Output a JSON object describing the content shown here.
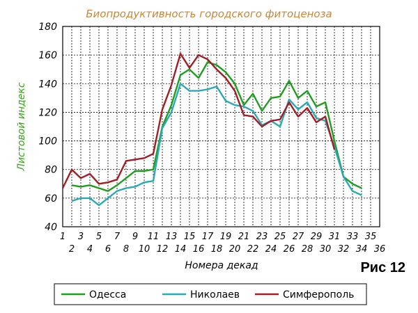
{
  "caption": "Рис 12",
  "chart_data": {
    "type": "line",
    "title": "Биопродуктивность городского фитоценоза",
    "xlabel": "Номера декад",
    "ylabel": "Листовой индекс",
    "x_ticks_top": [
      "1",
      "3",
      "5",
      "7",
      "9",
      "11",
      "13",
      "15",
      "17",
      "19",
      "21",
      "23",
      "25",
      "27",
      "29",
      "31",
      "33",
      "35"
    ],
    "x_ticks_bottom": [
      "2",
      "4",
      "6",
      "8",
      "10",
      "12",
      "14",
      "16",
      "18",
      "20",
      "22",
      "24",
      "26",
      "28",
      "30",
      "32",
      "34",
      "36"
    ],
    "xlim": [
      1,
      36
    ],
    "ylim": [
      40,
      180
    ],
    "y_ticks": [
      "40",
      "60",
      "80",
      "100",
      "120",
      "140",
      "160",
      "180"
    ],
    "grid": true,
    "legend_position": "bottom",
    "colors": {
      "title": "#c8863a",
      "axis_label": "#3aa51d",
      "grid": "#000000",
      "frame": "#000000"
    },
    "series": [
      {
        "name": "Одесса",
        "color": "#1e9e1e",
        "x": [
          2,
          3,
          4,
          5,
          6,
          7,
          8,
          9,
          10,
          11,
          12,
          13,
          14,
          15,
          16,
          17,
          18,
          19,
          20,
          21,
          22,
          23,
          24,
          25,
          26,
          27,
          28,
          29,
          30,
          31,
          32,
          33,
          34
        ],
        "y": [
          69,
          68,
          69,
          67,
          65,
          69,
          74,
          79,
          79,
          80,
          110,
          125,
          146,
          150,
          144,
          155,
          153,
          148,
          140,
          125,
          133,
          121,
          130,
          131,
          142,
          130,
          135,
          124,
          127,
          100,
          75,
          70,
          67
        ]
      },
      {
        "name": "Николаев",
        "color": "#29a9b5",
        "x": [
          2,
          3,
          4,
          5,
          6,
          7,
          8,
          9,
          10,
          11,
          12,
          13,
          14,
          15,
          16,
          17,
          18,
          19,
          20,
          21,
          22,
          23,
          24,
          25,
          26,
          27,
          28,
          29,
          30,
          31,
          32,
          33,
          34
        ],
        "y": [
          58,
          60,
          60,
          55,
          60,
          65,
          67,
          68,
          71,
          72,
          109,
          120,
          140,
          135,
          135,
          136,
          138,
          128,
          125,
          124,
          121,
          111,
          114,
          110,
          129,
          122,
          127,
          116,
          114,
          96,
          75,
          65,
          62
        ]
      },
      {
        "name": "Симферополь",
        "color": "#a41c24",
        "x": [
          1,
          2,
          3,
          4,
          5,
          6,
          7,
          8,
          9,
          10,
          11,
          12,
          13,
          14,
          15,
          16,
          17,
          18,
          19,
          20,
          21,
          22,
          23,
          24,
          25,
          26,
          27,
          28,
          29,
          30,
          31
        ],
        "y": [
          67,
          80,
          74,
          77,
          70,
          71,
          73,
          86,
          87,
          88,
          91,
          122,
          139,
          161,
          151,
          160,
          157,
          150,
          144,
          135,
          118,
          117,
          110,
          114,
          115,
          127,
          117,
          123,
          113,
          117,
          94
        ]
      }
    ]
  }
}
